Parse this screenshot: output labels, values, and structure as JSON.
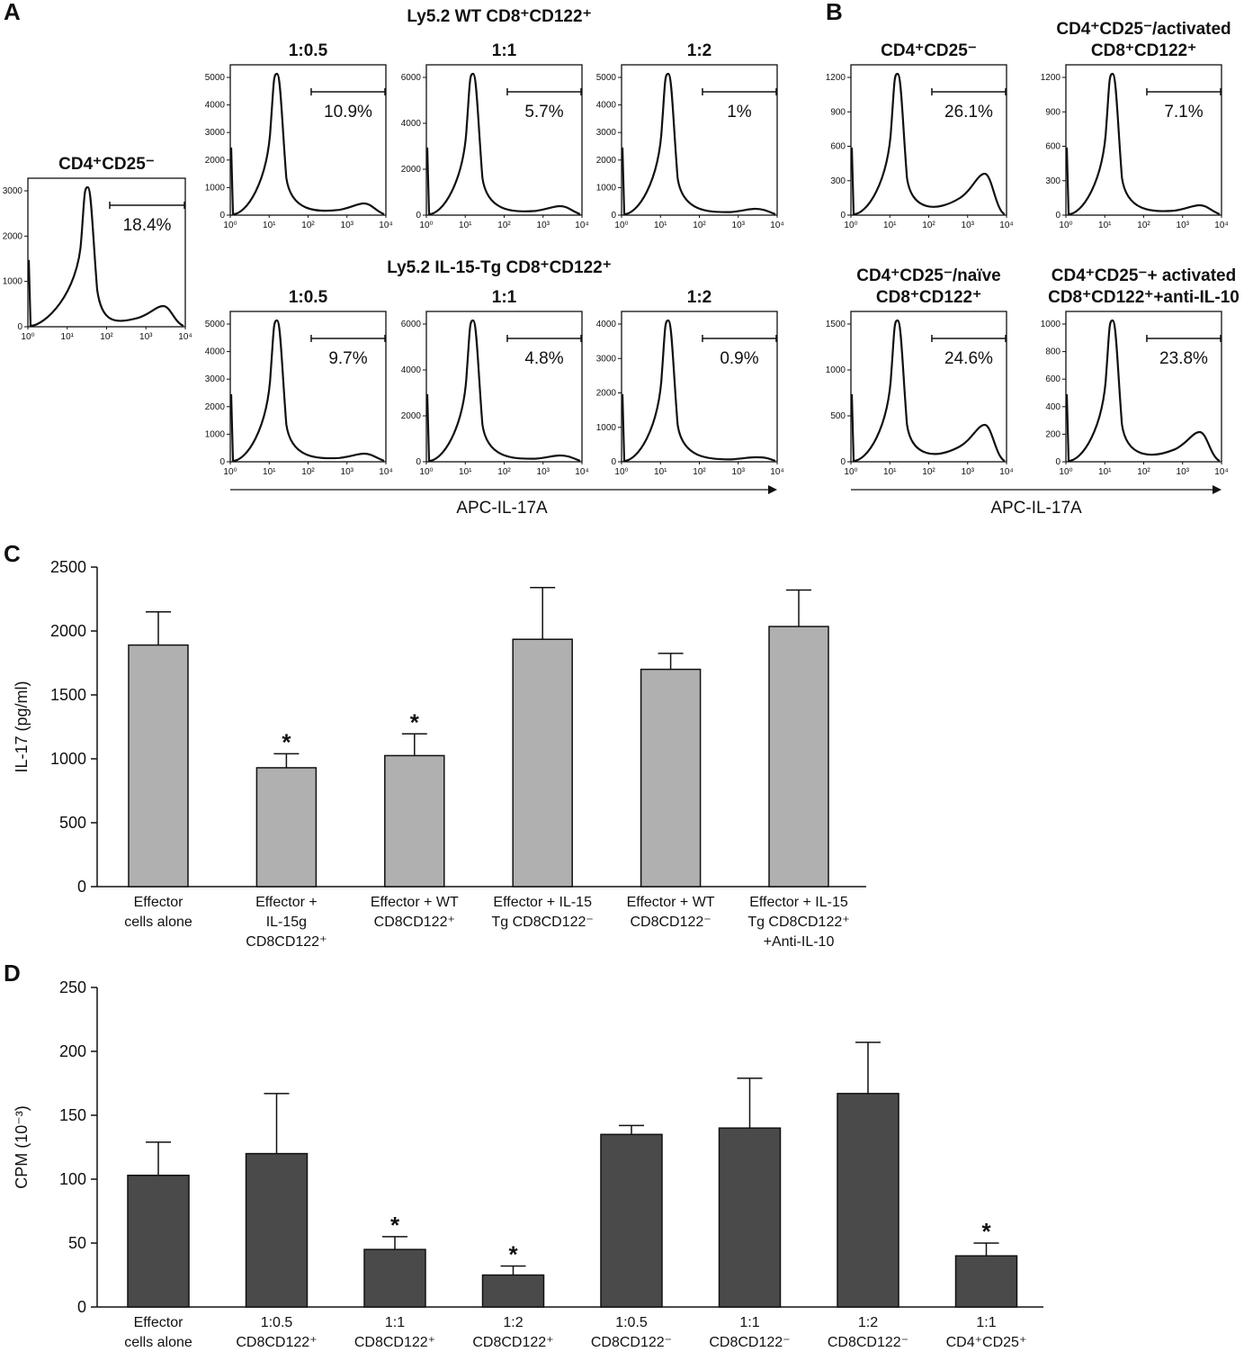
{
  "panels": {
    "A": {
      "label": "A",
      "control": {
        "title": "CD4⁺CD25⁻",
        "pct": "18.4%",
        "ymax": 3000,
        "yticks": [
          0,
          1000,
          2000,
          3000
        ]
      },
      "group1_title": "Ly5.2 WT CD8⁺CD122⁺",
      "group2_title": "Ly5.2 IL-15-Tg  CD8⁺CD122⁺",
      "group1": [
        {
          "title": "1:0.5",
          "pct": "10.9%",
          "yticks": [
            0,
            1000,
            2000,
            3000,
            4000,
            5000
          ]
        },
        {
          "title": "1:1",
          "pct": "5.7%",
          "yticks": [
            0,
            2000,
            4000,
            6000
          ]
        },
        {
          "title": "1:2",
          "pct": "1%",
          "yticks": [
            0,
            1000,
            2000,
            3000,
            4000,
            5000
          ]
        }
      ],
      "group2": [
        {
          "title": "1:0.5",
          "pct": "9.7%",
          "yticks": [
            0,
            1000,
            2000,
            3000,
            4000,
            5000
          ]
        },
        {
          "title": "1:1",
          "pct": "4.8%",
          "yticks": [
            0,
            2000,
            4000,
            6000
          ]
        },
        {
          "title": "1:2",
          "pct": "0.9%",
          "yticks": [
            0,
            1000,
            2000,
            3000,
            4000
          ]
        }
      ],
      "xaxis_label": "APC-IL-17A"
    },
    "B": {
      "label": "B",
      "histograms": [
        {
          "title": [
            "CD4⁺CD25⁻"
          ],
          "pct": "26.1%",
          "yticks": [
            0,
            300,
            600,
            900,
            1200
          ]
        },
        {
          "title": [
            "CD4⁺CD25⁻/activated",
            "CD8⁺CD122⁺"
          ],
          "pct": "7.1%",
          "yticks": [
            0,
            300,
            600,
            900,
            1200
          ]
        },
        {
          "title": [
            "CD4⁺CD25⁻/naïve",
            "CD8⁺CD122⁺"
          ],
          "pct": "24.6%",
          "yticks": [
            0,
            500,
            1000,
            1500
          ]
        },
        {
          "title": [
            "CD4⁺CD25⁻+ activated",
            "CD8⁺CD122⁺+anti-IL-10"
          ],
          "pct": "23.8%",
          "yticks": [
            0,
            200,
            400,
            600,
            800,
            1000
          ]
        }
      ],
      "xaxis_label": "APC-IL-17A"
    },
    "C": {
      "label": "C"
    },
    "D": {
      "label": "D"
    }
  },
  "flow_xticks": [
    "10⁰",
    "10¹",
    "10²",
    "10³",
    "10⁴"
  ],
  "chart_data": [
    {
      "type": "bar",
      "panel": "C",
      "ylabel": "IL-17 (pg/ml)",
      "ylim": [
        0,
        2500
      ],
      "yticks": [
        0,
        500,
        1000,
        1500,
        2000,
        2500
      ],
      "bar_color": "#b0b0b0",
      "categories": [
        [
          "Effector",
          "cells alone"
        ],
        [
          "Effector +",
          "IL-15g",
          "CD8CD122⁺"
        ],
        [
          "Effector + WT",
          "CD8CD122⁺"
        ],
        [
          "Effector + IL-15",
          "Tg CD8CD122⁻"
        ],
        [
          "Effector + WT",
          "CD8CD122⁻"
        ],
        [
          "Effector + IL-15",
          "Tg CD8CD122⁺",
          "+Anti-IL-10"
        ]
      ],
      "values": [
        1890,
        930,
        1025,
        1935,
        1700,
        2035
      ],
      "errors": [
        260,
        110,
        170,
        405,
        125,
        285
      ],
      "significant": [
        false,
        true,
        true,
        false,
        false,
        false
      ],
      "marker": "*"
    },
    {
      "type": "bar",
      "panel": "D",
      "ylabel": "CPM (10⁻³)",
      "ylim": [
        0,
        250
      ],
      "yticks": [
        0,
        50,
        100,
        150,
        200,
        250
      ],
      "bar_color": "#4a4a4a",
      "categories": [
        [
          "Effector",
          "cells alone"
        ],
        [
          "1:0.5",
          "CD8CD122⁺"
        ],
        [
          "1:1",
          "CD8CD122⁺"
        ],
        [
          "1:2",
          "CD8CD122⁺"
        ],
        [
          "1:0.5",
          "CD8CD122⁻"
        ],
        [
          "1:1",
          "CD8CD122⁻"
        ],
        [
          "1:2",
          "CD8CD122⁻"
        ],
        [
          "1:1",
          "CD4⁺CD25⁺"
        ]
      ],
      "values": [
        103,
        120,
        45,
        25,
        135,
        140,
        167,
        40
      ],
      "errors": [
        26,
        47,
        10,
        7,
        7,
        39,
        40,
        10
      ],
      "significant": [
        false,
        false,
        true,
        true,
        false,
        false,
        false,
        true
      ],
      "marker": "*"
    }
  ]
}
